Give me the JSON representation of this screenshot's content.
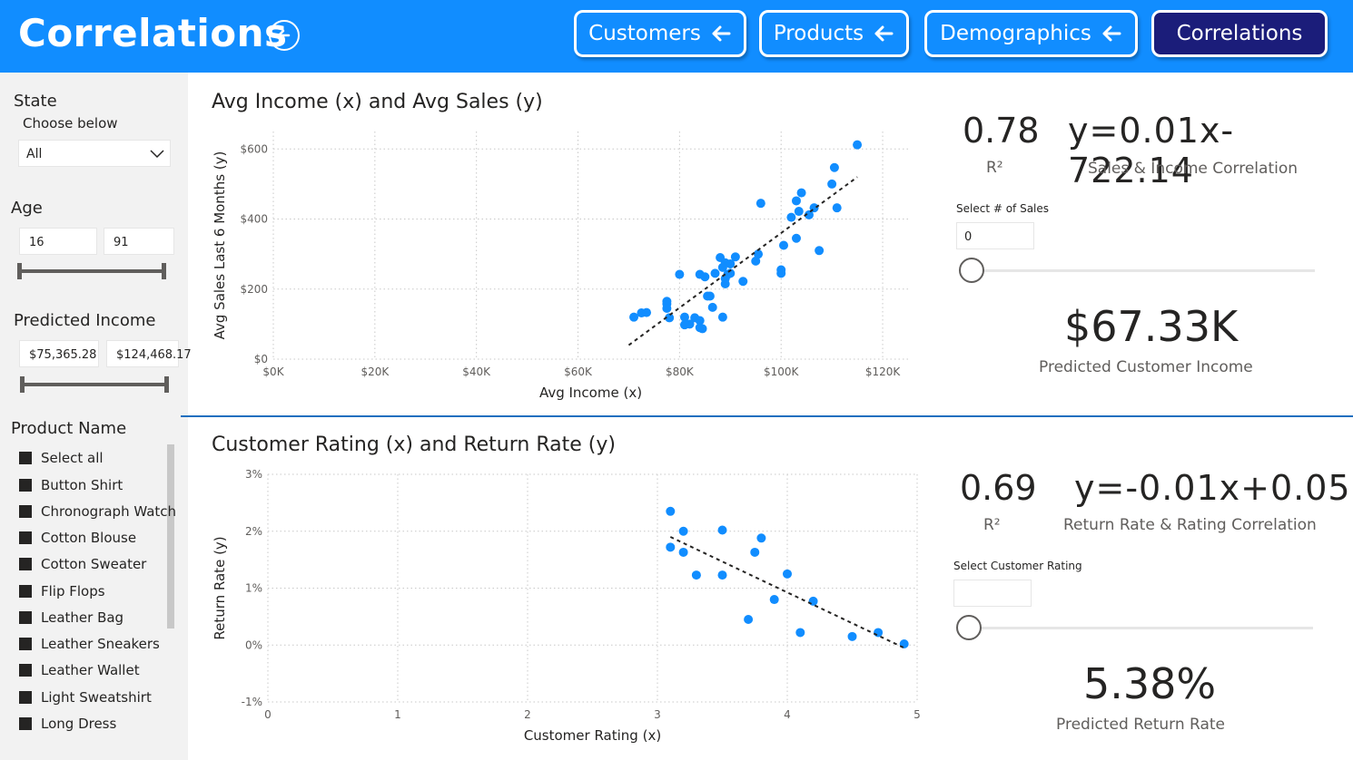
{
  "header": {
    "title": "Correlations",
    "nav": [
      {
        "label": "Customers",
        "active": false
      },
      {
        "label": "Products",
        "active": false
      },
      {
        "label": "Demographics",
        "active": false
      },
      {
        "label": "Correlations",
        "active": true
      }
    ],
    "back_icon": "circle-arrow-left-icon",
    "arrow_icon": "arrow-left-icon",
    "colors": {
      "header_bg": "#118DFF",
      "active_bg": "#1B1D7A"
    }
  },
  "sidebar": {
    "state": {
      "label": "State",
      "sub": "Choose below",
      "value": "All"
    },
    "age": {
      "label": "Age",
      "min": "16",
      "max": "91"
    },
    "income": {
      "label": "Predicted Income",
      "min": "$75,365.28",
      "max": "$124,468.17"
    },
    "product": {
      "label": "Product Name",
      "items": [
        "Select all",
        "Button Shirt",
        "Chronograph Watch",
        "Cotton Blouse",
        "Cotton Sweater",
        "Flip Flops",
        "Leather Bag",
        "Leather Sneakers",
        "Leather Wallet",
        "Light Sweatshirt",
        "Long Dress"
      ]
    }
  },
  "chart_data": [
    {
      "type": "scatter",
      "title": "Avg Income (x) and Avg Sales (y)",
      "xlabel": "Avg Income (x)",
      "ylabel": "Avg Sales Last 6 Months (y)",
      "xlim": [
        0,
        125000
      ],
      "ylim": [
        0,
        650
      ],
      "xticks": [
        0,
        20000,
        40000,
        60000,
        80000,
        100000,
        120000
      ],
      "xtick_labels": [
        "$0K",
        "$20K",
        "$40K",
        "$60K",
        "$80K",
        "$100K",
        "$120K"
      ],
      "yticks": [
        0,
        200,
        400,
        600
      ],
      "ytick_labels": [
        "$0",
        "$200",
        "$400",
        "$600"
      ],
      "grid": true,
      "color": "#118DFF",
      "trendline": {
        "x": [
          70000,
          115000
        ],
        "y": [
          40,
          520
        ]
      },
      "points": [
        [
          115000,
          612
        ],
        [
          110500,
          547
        ],
        [
          110000,
          500
        ],
        [
          111000,
          432
        ],
        [
          104000,
          475
        ],
        [
          103000,
          452
        ],
        [
          103500,
          422
        ],
        [
          105500,
          412
        ],
        [
          106500,
          432
        ],
        [
          102000,
          405
        ],
        [
          96000,
          445
        ],
        [
          103000,
          345
        ],
        [
          100500,
          325
        ],
        [
          107500,
          310
        ],
        [
          95500,
          300
        ],
        [
          95000,
          280
        ],
        [
          100000,
          255
        ],
        [
          100000,
          245
        ],
        [
          88000,
          290
        ],
        [
          89000,
          275
        ],
        [
          90000,
          272
        ],
        [
          91000,
          292
        ],
        [
          88500,
          262
        ],
        [
          87000,
          245
        ],
        [
          89500,
          242
        ],
        [
          90000,
          245
        ],
        [
          89000,
          230
        ],
        [
          89000,
          215
        ],
        [
          92500,
          222
        ],
        [
          80000,
          242
        ],
        [
          84000,
          242
        ],
        [
          85000,
          235
        ],
        [
          86000,
          180
        ],
        [
          85500,
          180
        ],
        [
          77500,
          165
        ],
        [
          77500,
          158
        ],
        [
          77500,
          145
        ],
        [
          86500,
          148
        ],
        [
          78000,
          118
        ],
        [
          81000,
          120
        ],
        [
          83000,
          118
        ],
        [
          84000,
          110
        ],
        [
          82000,
          100
        ],
        [
          81000,
          98
        ],
        [
          84000,
          90
        ],
        [
          84500,
          87
        ],
        [
          88500,
          120
        ],
        [
          72500,
          132
        ],
        [
          73500,
          133
        ],
        [
          71000,
          120
        ]
      ]
    },
    {
      "type": "scatter",
      "title": "Customer Rating (x) and Return Rate (y)",
      "xlabel": "Customer Rating (x)",
      "ylabel": "Return Rate (y)",
      "xlim": [
        0,
        5
      ],
      "ylim": [
        -1,
        3
      ],
      "xticks": [
        0,
        1,
        2,
        3,
        4,
        5
      ],
      "xtick_labels": [
        "0",
        "1",
        "2",
        "3",
        "4",
        "5"
      ],
      "yticks": [
        -1,
        0,
        1,
        2,
        3
      ],
      "ytick_labels": [
        "-1%",
        "0%",
        "1%",
        "2%",
        "3%"
      ],
      "grid": true,
      "color": "#118DFF",
      "trendline": {
        "x": [
          3.1,
          4.9
        ],
        "y": [
          1.9,
          -0.05
        ]
      },
      "points": [
        [
          3.1,
          2.35
        ],
        [
          3.2,
          2.0
        ],
        [
          3.5,
          2.02
        ],
        [
          3.1,
          1.72
        ],
        [
          3.2,
          1.63
        ],
        [
          3.3,
          1.23
        ],
        [
          3.5,
          1.23
        ],
        [
          3.8,
          1.88
        ],
        [
          3.75,
          1.63
        ],
        [
          4.0,
          1.25
        ],
        [
          3.9,
          0.8
        ],
        [
          4.2,
          0.77
        ],
        [
          3.7,
          0.45
        ],
        [
          4.1,
          0.22
        ],
        [
          4.5,
          0.15
        ],
        [
          4.7,
          0.22
        ],
        [
          4.9,
          0.02
        ]
      ]
    }
  ],
  "kpi_sales": {
    "r2": "0.78",
    "r2_label": "R²",
    "equation": "y=0.01x-722.14",
    "equation_label": "Sales & Income Correlation",
    "select_label": "Select # of Sales",
    "select_value": "0",
    "predicted": "$67.33K",
    "predicted_label": "Predicted Customer Income"
  },
  "kpi_returns": {
    "r2": "0.69",
    "r2_label": "R²",
    "equation": "y=-0.01x+0.05",
    "equation_label": "Return Rate & Rating Correlation",
    "select_label": "Select Customer Rating",
    "select_value": "",
    "predicted": "5.38%",
    "predicted_label": "Predicted Return Rate"
  }
}
